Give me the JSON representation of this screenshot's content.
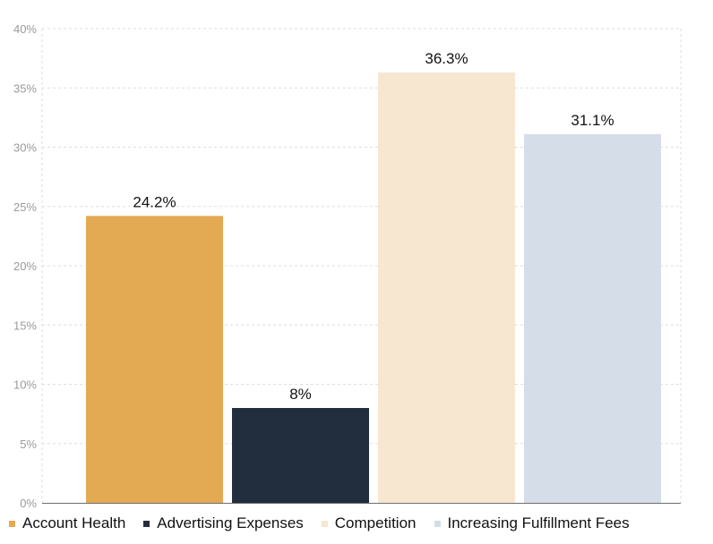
{
  "chart_data": {
    "type": "bar",
    "categories": [
      "Account Health",
      "Advertising Expenses",
      "Competition",
      "Increasing Fulfillment Fees"
    ],
    "values": [
      24.2,
      8,
      36.3,
      31.1
    ],
    "value_labels": [
      "24.2%",
      "8%",
      "36.3%",
      "31.1%"
    ],
    "colors": [
      "#e3aa53",
      "#222e3e",
      "#f7e7d1",
      "#d5dde8"
    ],
    "ylim": [
      0,
      40
    ],
    "yticks": [
      0,
      5,
      10,
      15,
      20,
      25,
      30,
      35,
      40
    ],
    "ytick_labels": [
      "0%",
      "5%",
      "10%",
      "15%",
      "20%",
      "25%",
      "30%",
      "35%",
      "40%"
    ],
    "title": "",
    "xlabel": "",
    "ylabel": "",
    "grid": true,
    "legend": "bottom-left"
  }
}
